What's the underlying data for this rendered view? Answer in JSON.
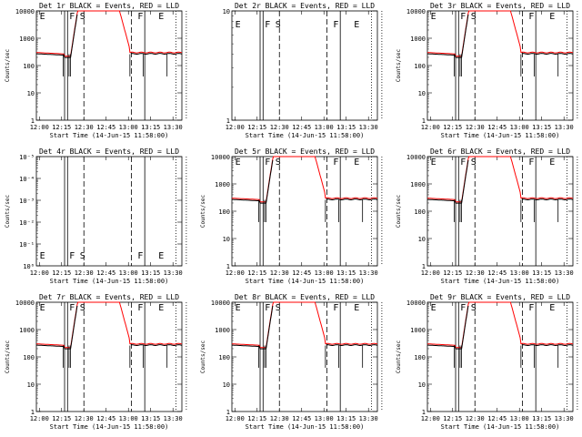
{
  "chart_data": [
    {
      "type": "line",
      "title": "Det 1r BLACK = Events, RED = LLD",
      "ylabel": "Counts/sec",
      "xlabel": "Start Time (14-Jun-15 11:58:00)",
      "x_ticks": [
        "12:00",
        "12:15",
        "12:30",
        "12:45",
        "13:00",
        "13:15",
        "13:30"
      ],
      "y_ticks": [
        "1",
        "10",
        "100",
        "1000",
        "10000"
      ],
      "ylim": [
        1,
        10000
      ],
      "yscale": "log",
      "markers": [
        "E",
        "F",
        "S",
        "F",
        "E"
      ],
      "has_data": true,
      "red_peak": true
    },
    {
      "type": "line",
      "title": "Det 2r BLACK = Events, RED = LLD",
      "ylabel": "",
      "xlabel": "Start Time (14-Jun-15 11:58:00)",
      "x_ticks": [
        "12:00",
        "12:15",
        "12:30",
        "12:45",
        "13:00",
        "13:15",
        "13:30"
      ],
      "y_ticks": [
        "1",
        "10"
      ],
      "ylim": [
        1,
        10
      ],
      "yscale": "log",
      "markers": [
        "E",
        "F",
        "S",
        "F",
        "E"
      ],
      "has_data": false,
      "red_peak": false
    },
    {
      "type": "line",
      "title": "Det 3r BLACK = Events, RED = LLD",
      "ylabel": "Counts/sec",
      "xlabel": "Start Time (14-Jun-15 11:58:00)",
      "x_ticks": [
        "12:00",
        "12:15",
        "12:30",
        "12:45",
        "13:00",
        "13:15",
        "13:30"
      ],
      "y_ticks": [
        "1",
        "10",
        "100",
        "1000",
        "10000"
      ],
      "ylim": [
        1,
        10000
      ],
      "yscale": "log",
      "markers": [
        "E",
        "F",
        "S",
        "F",
        "E"
      ],
      "has_data": true,
      "red_peak": true
    },
    {
      "type": "line",
      "title": "Det 4r BLACK = Events, RED = LLD",
      "ylabel": "Counts/sec",
      "xlabel": "Start Time (14-Jun-15 11:58:00)",
      "x_ticks": [
        "12:00",
        "12:15",
        "12:30",
        "12:45",
        "13:00",
        "13:15",
        "13:30"
      ],
      "y_ticks": [
        "10⁰",
        "10⁻¹",
        "10⁻²",
        "10⁻³",
        "10⁻⁴",
        "10⁻⁵"
      ],
      "ylim": [
        1e-05,
        1
      ],
      "yscale": "log",
      "markers": [
        "E",
        "F",
        "S",
        "F",
        "E"
      ],
      "has_data": false,
      "red_peak": false
    },
    {
      "type": "line",
      "title": "Det 5r BLACK = Events, RED = LLD",
      "ylabel": "Counts/sec",
      "xlabel": "Start Time (14-Jun-15 11:58:00)",
      "x_ticks": [
        "12:00",
        "12:15",
        "12:30",
        "12:45",
        "13:00",
        "13:15",
        "13:30"
      ],
      "y_ticks": [
        "1",
        "10",
        "100",
        "1000",
        "10000"
      ],
      "ylim": [
        1,
        10000
      ],
      "yscale": "log",
      "markers": [
        "E",
        "F",
        "S",
        "F",
        "E"
      ],
      "has_data": true,
      "red_peak": true
    },
    {
      "type": "line",
      "title": "Det 6r BLACK = Events, RED = LLD",
      "ylabel": "Counts/sec",
      "xlabel": "Start Time (14-Jun-15 11:58:00)",
      "x_ticks": [
        "12:00",
        "12:15",
        "12:30",
        "12:45",
        "13:00",
        "13:15",
        "13:30"
      ],
      "y_ticks": [
        "1",
        "10",
        "100",
        "1000",
        "10000"
      ],
      "ylim": [
        1,
        10000
      ],
      "yscale": "log",
      "markers": [
        "E",
        "F",
        "S",
        "F",
        "E"
      ],
      "has_data": true,
      "red_peak": true
    },
    {
      "type": "line",
      "title": "Det 7r BLACK = Events, RED = LLD",
      "ylabel": "Counts/sec",
      "xlabel": "Start Time (14-Jun-15 11:58:00)",
      "x_ticks": [
        "12:00",
        "12:15",
        "12:30",
        "12:45",
        "13:00",
        "13:15",
        "13:30"
      ],
      "y_ticks": [
        "1",
        "10",
        "100",
        "1000",
        "10000"
      ],
      "ylim": [
        1,
        10000
      ],
      "yscale": "log",
      "markers": [
        "E",
        "F",
        "S",
        "F",
        "E"
      ],
      "has_data": true,
      "red_peak": true
    },
    {
      "type": "line",
      "title": "Det 8r BLACK = Events, RED = LLD",
      "ylabel": "Counts/sec",
      "xlabel": "Start Time (14-Jun-15 11:58:00)",
      "x_ticks": [
        "12:00",
        "12:15",
        "12:30",
        "12:45",
        "13:00",
        "13:15",
        "13:30"
      ],
      "y_ticks": [
        "1",
        "10",
        "100",
        "1000",
        "10000"
      ],
      "ylim": [
        1,
        10000
      ],
      "yscale": "log",
      "markers": [
        "E",
        "F",
        "S",
        "F",
        "E"
      ],
      "has_data": true,
      "red_peak": true
    },
    {
      "type": "line",
      "title": "Det 9r BLACK = Events, RED = LLD",
      "ylabel": "Counts/sec",
      "xlabel": "Start Time (14-Jun-15 11:58:00)",
      "x_ticks": [
        "12:00",
        "12:15",
        "12:30",
        "12:45",
        "13:00",
        "13:15",
        "13:30"
      ],
      "y_ticks": [
        "1",
        "10",
        "100",
        "1000",
        "10000"
      ],
      "ylim": [
        1,
        10000
      ],
      "yscale": "log",
      "markers": [
        "E",
        "F",
        "S",
        "F",
        "E"
      ],
      "has_data": true,
      "red_peak": true
    }
  ],
  "colors": {
    "events": "#000000",
    "lld": "#ff0000",
    "background": "#ffffff"
  }
}
